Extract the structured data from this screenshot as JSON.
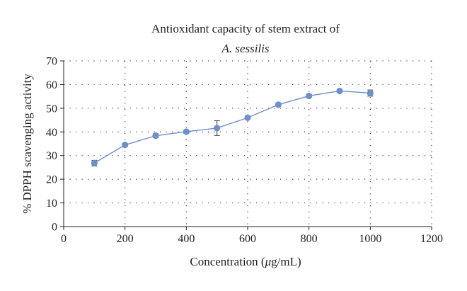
{
  "chart_data": {
    "type": "line",
    "title_line1": "Antioxidant capacity of stem extract of",
    "title_line2": "A. sessilis",
    "xlabel_prefix": "Concentration (",
    "xlabel_mu": "μ",
    "xlabel_suffix": "g/mL)",
    "ylabel": "% DPPH scavenging activity",
    "xlim": [
      0,
      1200
    ],
    "ylim": [
      0,
      70
    ],
    "xticks": [
      "0",
      "200",
      "400",
      "600",
      "800",
      "1000",
      "1200"
    ],
    "yticks": [
      "0",
      "10",
      "20",
      "30",
      "40",
      "50",
      "60",
      "70"
    ],
    "x_tick_values": [
      0,
      200,
      400,
      600,
      800,
      1000,
      1200
    ],
    "y_tick_values": [
      0,
      10,
      20,
      30,
      40,
      50,
      60,
      70
    ],
    "grid": true,
    "legend": "none",
    "series": [
      {
        "color": "#6f8fc9",
        "x": [
          100,
          200,
          300,
          400,
          500,
          600,
          700,
          800,
          900,
          1000
        ],
        "y": [
          26.8,
          34.5,
          38.4,
          40.1,
          41.6,
          46.0,
          51.5,
          55.2,
          57.3,
          56.4
        ],
        "error": [
          1.2,
          0.6,
          0.8,
          0.7,
          3.1,
          0.6,
          0.6,
          0.6,
          0.5,
          1.3
        ]
      }
    ]
  }
}
